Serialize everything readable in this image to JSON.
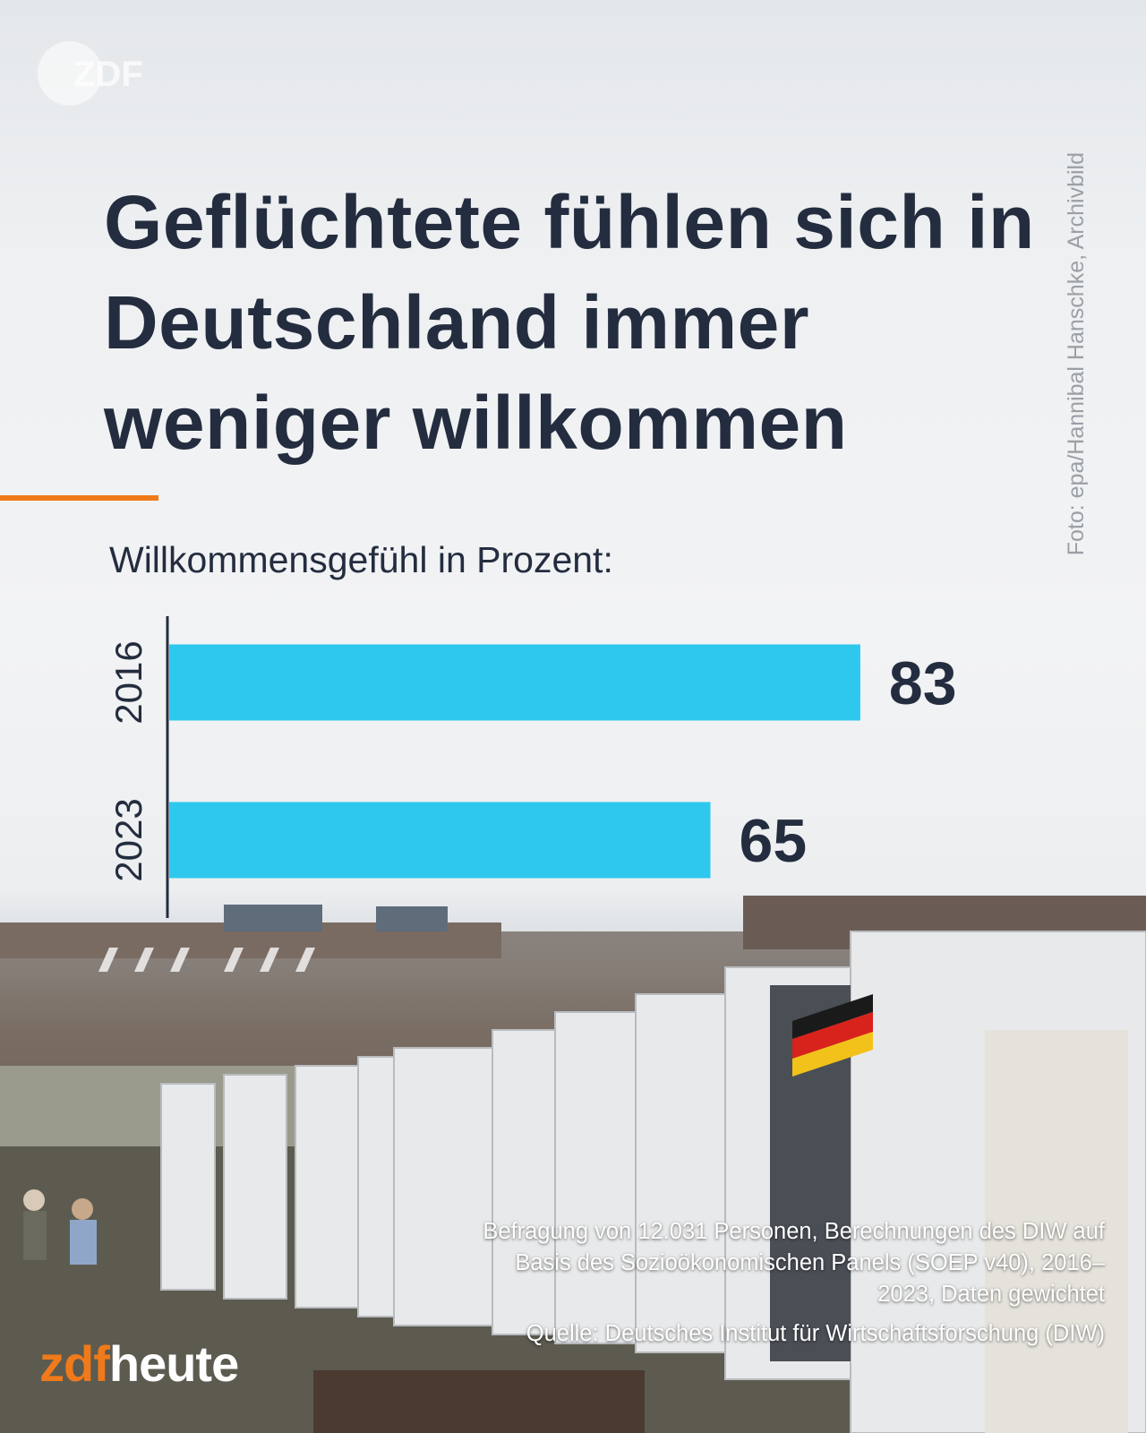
{
  "logo_text": "ZDF",
  "photo_credit": "Foto: epa/Hannibal Hanschke, Archivbild",
  "headline": "Geflüchtete fühlen sich in Deutschland immer weniger willkommen",
  "subtitle": "Willkommensgefühl in Prozent:",
  "accent_color": "#f07a1a",
  "bar_color": "#2ec8ef",
  "chart_data": {
    "type": "bar",
    "orientation": "horizontal",
    "categories": [
      "2016",
      "2023"
    ],
    "values": [
      83,
      65
    ],
    "value_labels": [
      "83",
      "65"
    ],
    "xlim": [
      0,
      100
    ],
    "grid": false
  },
  "note": "Befragung von 12.031 Personen, Berechnungen des DIW auf Basis des Sozioökonomischen Panels (SOEP v40), 2016–2023, Daten gewichtet",
  "source": "Quelle: Deutsches Institut für Wirtschaftsforschung (DIW)",
  "brand": {
    "zdf": "zdf",
    "heute": "heute"
  }
}
